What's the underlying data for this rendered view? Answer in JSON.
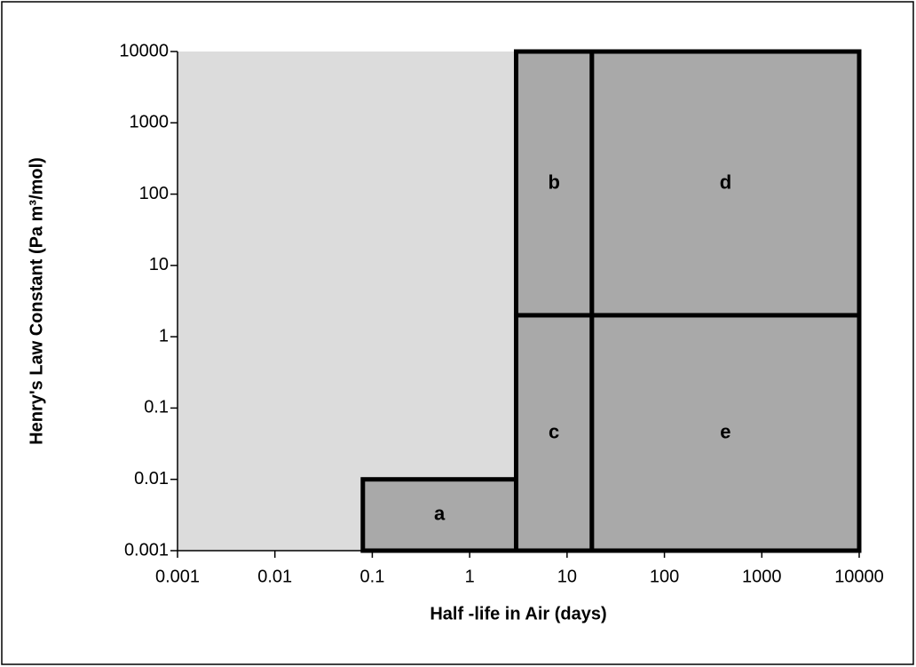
{
  "chart_data": {
    "type": "region",
    "xlabel": "Half -life in Air (days)",
    "ylabel": "Henry's Law Constant (Pa m³/mol)",
    "xscale": "log",
    "yscale": "log",
    "xlim": [
      0.001,
      10000
    ],
    "ylim": [
      0.001,
      10000
    ],
    "xticks": [
      0.001,
      0.01,
      0.1,
      1,
      10,
      100,
      1000,
      10000
    ],
    "yticks": [
      0.001,
      0.01,
      0.1,
      1,
      10,
      100,
      1000,
      10000
    ],
    "plot_background": "#dcdcdc",
    "color": "#a9a9a9",
    "regions": [
      {
        "label": "a",
        "x": [
          0.08,
          3
        ],
        "y": [
          0.001,
          0.01
        ]
      },
      {
        "label": "b",
        "x": [
          3,
          18
        ],
        "y": [
          2,
          10000
        ]
      },
      {
        "label": "c",
        "x": [
          3,
          18
        ],
        "y": [
          0.001,
          2
        ]
      },
      {
        "label": "d",
        "x": [
          18,
          10000
        ],
        "y": [
          2,
          10000
        ]
      },
      {
        "label": "e",
        "x": [
          18,
          10000
        ],
        "y": [
          0.001,
          2
        ]
      }
    ]
  }
}
